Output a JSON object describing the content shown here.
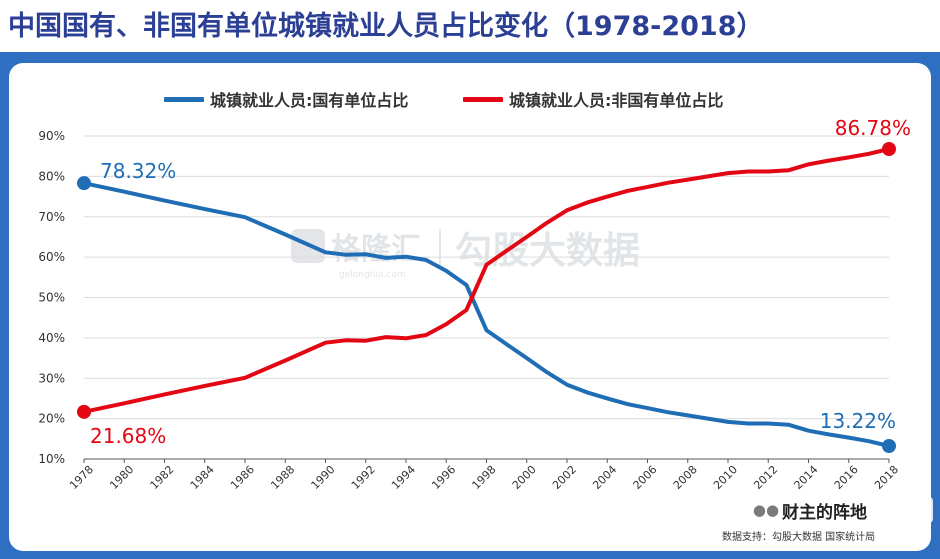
{
  "header": {
    "title": "中国国有、非国有单位城镇就业人员占比变化（1978-2018）"
  },
  "source_note": "数据支持：勾股大数据 国家统计局",
  "watermark": {
    "brand": "格隆汇",
    "site": "gelonghui.com",
    "product": "勾股大数据"
  },
  "badge": {
    "icon": "wechat-icon",
    "text": "财主的阵地"
  },
  "colors": {
    "state_line": "#1f6db5",
    "nonstate_line": "#e30613",
    "page_background": "#2f6fc2",
    "title_text": "#2b3f94"
  },
  "chart_data": {
    "type": "line",
    "x_tick_labels": [
      "1978",
      "1980",
      "1982",
      "1984",
      "1986",
      "1988",
      "1990",
      "1992",
      "1994",
      "1996",
      "1998",
      "2000",
      "2002",
      "2004",
      "2006",
      "2008",
      "2010",
      "2012",
      "2014",
      "2016",
      "2018"
    ],
    "y_tick_labels": [
      "10%",
      "20%",
      "30%",
      "40%",
      "50%",
      "60%",
      "70%",
      "80%",
      "90%"
    ],
    "ylim": [
      10,
      90
    ],
    "xlim": [
      1978,
      2018
    ],
    "grid": true,
    "legend_position": "top",
    "series": [
      {
        "name": "城镇就业人员:国有单位占比",
        "color": "#1f6db5",
        "x": [
          1978,
          1980,
          1982,
          1984,
          1986,
          1988,
          1990,
          1991,
          1992,
          1993,
          1994,
          1995,
          1996,
          1997,
          1998,
          1999,
          2000,
          2001,
          2002,
          2003,
          2004,
          2005,
          2006,
          2007,
          2008,
          2009,
          2010,
          2011,
          2012,
          2013,
          2014,
          2015,
          2016,
          2017,
          2018
        ],
        "y": [
          78.32,
          76.2,
          74.0,
          71.9,
          69.9,
          65.6,
          61.2,
          60.6,
          60.7,
          59.8,
          60.1,
          59.3,
          56.6,
          53.1,
          41.9,
          38.4,
          35.0,
          31.5,
          28.4,
          26.5,
          25.0,
          23.6,
          22.6,
          21.6,
          20.8,
          20.0,
          19.2,
          18.8,
          18.8,
          18.5,
          17.0,
          16.1,
          15.3,
          14.4,
          13.22
        ],
        "start_label": "78.32%",
        "end_label": "13.22%"
      },
      {
        "name": "城镇就业人员:非国有单位占比",
        "color": "#e30613",
        "x": [
          1978,
          1980,
          1982,
          1984,
          1986,
          1988,
          1990,
          1991,
          1992,
          1993,
          1994,
          1995,
          1996,
          1997,
          1998,
          1999,
          2000,
          2001,
          2002,
          2003,
          2004,
          2005,
          2006,
          2007,
          2008,
          2009,
          2010,
          2011,
          2012,
          2013,
          2014,
          2015,
          2016,
          2017,
          2018
        ],
        "y": [
          21.68,
          23.8,
          26.0,
          28.1,
          30.1,
          34.4,
          38.8,
          39.4,
          39.3,
          40.2,
          39.9,
          40.7,
          43.4,
          46.9,
          58.1,
          61.6,
          65.0,
          68.5,
          71.6,
          73.5,
          75.0,
          76.4,
          77.4,
          78.4,
          79.2,
          80.0,
          80.8,
          81.2,
          81.2,
          81.5,
          83.0,
          83.9,
          84.7,
          85.6,
          86.78
        ],
        "start_label": "21.68%",
        "end_label": "86.78%"
      }
    ]
  }
}
